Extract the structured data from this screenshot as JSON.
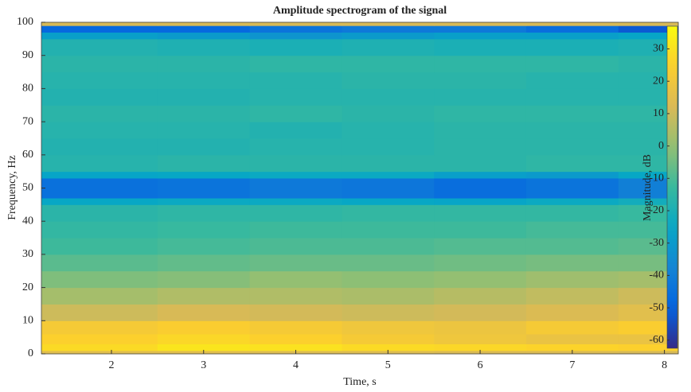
{
  "chart_data": {
    "type": "heatmap",
    "title": "Amplitude spectrogram of the signal",
    "x_label": "Time, s",
    "y_label": "Frequency, Hz",
    "colorbar_label": "Magnitude, dB",
    "colormap": "parula",
    "x_edges": [
      1.24,
      2.5,
      3.5,
      4.5,
      5.5,
      6.5,
      7.5,
      8.15
    ],
    "y_edges": [
      0,
      1,
      3,
      6,
      10,
      15,
      20,
      25,
      30,
      35,
      40,
      45,
      47,
      53,
      55,
      60,
      65,
      70,
      75,
      80,
      85,
      90,
      95,
      97,
      99,
      100
    ],
    "z": [
      [
        15,
        15,
        14,
        14,
        13,
        13,
        12
      ],
      [
        28,
        31,
        30,
        28,
        27,
        26,
        25
      ],
      [
        25,
        27,
        25,
        22,
        20,
        18,
        18
      ],
      [
        22,
        24,
        22,
        20,
        19,
        22,
        24
      ],
      [
        10,
        12,
        11,
        10,
        11,
        13,
        15
      ],
      [
        3,
        5,
        5,
        4,
        6,
        8,
        10
      ],
      [
        -3,
        -2,
        0,
        -1,
        0,
        2,
        3
      ],
      [
        -8,
        -7,
        -6,
        -6,
        -5,
        -4,
        -4
      ],
      [
        -12,
        -11,
        -10,
        -10,
        -9,
        -9,
        -8
      ],
      [
        -14,
        -13,
        -12,
        -12,
        -12,
        -11,
        -11
      ],
      [
        -16,
        -15,
        -15,
        -14,
        -14,
        -14,
        -13
      ],
      [
        -25,
        -24,
        -24,
        -25,
        -26,
        -24,
        -22
      ],
      [
        -45,
        -44,
        -42,
        -43,
        -46,
        -44,
        -40
      ],
      [
        -26,
        -25,
        -24,
        -24,
        -28,
        -30,
        -25
      ],
      [
        -17,
        -16,
        -16,
        -16,
        -16,
        -15,
        -15
      ],
      [
        -18,
        -18,
        -17,
        -17,
        -16,
        -16,
        -16
      ],
      [
        -17,
        -17,
        -18,
        -17,
        -16,
        -16,
        -16
      ],
      [
        -16,
        -16,
        -15,
        -16,
        -15,
        -15,
        -15
      ],
      [
        -18,
        -18,
        -17,
        -17,
        -17,
        -17,
        -17
      ],
      [
        -17,
        -17,
        -17,
        -16,
        -16,
        -17,
        -17
      ],
      [
        -16,
        -16,
        -15,
        -15,
        -15,
        -15,
        -16
      ],
      [
        -18,
        -19,
        -20,
        -19,
        -20,
        -20,
        -19
      ],
      [
        -28,
        -30,
        -32,
        -30,
        -28,
        -28,
        -26
      ],
      [
        -48,
        -48,
        -44,
        -42,
        -42,
        -46,
        -52
      ],
      [
        12,
        12,
        12,
        12,
        12,
        12,
        12
      ]
    ],
    "xlim": [
      1.24,
      8.15
    ],
    "xticks": [
      2,
      3,
      4,
      5,
      6,
      7,
      8
    ],
    "ylim": [
      0,
      100
    ],
    "yticks": [
      0,
      10,
      20,
      30,
      40,
      50,
      60,
      70,
      80,
      90,
      100
    ],
    "clim": [
      -62.5,
      37
    ],
    "cticks": [
      -60,
      -50,
      -40,
      -30,
      -20,
      -10,
      0,
      10,
      20,
      30
    ]
  }
}
